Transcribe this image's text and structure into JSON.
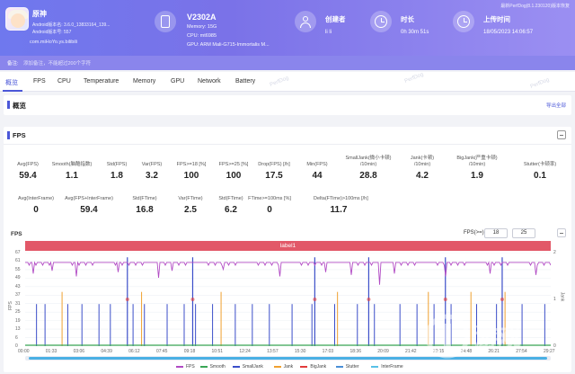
{
  "header": {
    "version_note": "最新PerfDog(8.1.230120)版本恢复",
    "app": {
      "name": "原神",
      "android_version": "Android版本名: 3.6.0_13833164_139...",
      "android_code": "Android版本号: 557",
      "package": "com.miHoYo.ys.bilibili"
    },
    "device": {
      "name": "V2302A",
      "memory": "Memory: 15G",
      "cpu": "CPU: mt6985",
      "gpu": "GPU: ARM Mali-G715-Immortalis M..."
    },
    "creator": {
      "label": "创建者",
      "value": "li li"
    },
    "duration": {
      "label": "时长",
      "value": "0h 30m 51s"
    },
    "upload": {
      "label": "上传时间",
      "value": "18/05/2023 14:06:57"
    }
  },
  "note_bar": {
    "label": "备注:",
    "text": "添加备注，不能超过200个字符"
  },
  "tabs": [
    "概览",
    "FPS",
    "CPU",
    "Temperature",
    "Memory",
    "GPU",
    "Network",
    "Battery"
  ],
  "watermark": "PerfDog",
  "overview": {
    "title": "概览",
    "export_label": "导出全部"
  },
  "fps_panel": {
    "title": "FPS",
    "stats_row1": [
      {
        "label": [
          "Avg(FPS)"
        ],
        "value": "59.4"
      },
      {
        "label": [
          "Smooth(脑酷指数)"
        ],
        "value": "1.1"
      },
      {
        "label": [
          "Std(FPS)"
        ],
        "value": "1.8"
      },
      {
        "label": [
          "Var(FPS)"
        ],
        "value": "3.2"
      },
      {
        "label": [
          "FPS>=18 [%]"
        ],
        "value": "100"
      },
      {
        "label": [
          "FPS>=25 [%]"
        ],
        "value": "100"
      },
      {
        "label": [
          "Drop(FPS) [/h]"
        ],
        "value": "17.5"
      },
      {
        "label": [
          "Min(FPS)"
        ],
        "value": "44"
      },
      {
        "label": [
          "SmallJank(微小卡顿)",
          "/10min)"
        ],
        "value": "28.8"
      },
      {
        "label": [
          "Jank(卡顿)",
          "/10min)"
        ],
        "value": "4.2"
      },
      {
        "label": [
          "BigJank(严重卡顿)",
          "/10min)"
        ],
        "value": "1.9"
      },
      {
        "label": [
          "Stutter(卡顿率)"
        ],
        "value": "0.1"
      }
    ],
    "stats_row2": [
      {
        "label": [
          "Avg(InterFrame)"
        ],
        "value": "0"
      },
      {
        "label": [
          "Avg(FPS+InterFrame)"
        ],
        "value": "59.4"
      },
      {
        "label": [
          "Std(FTime)"
        ],
        "value": "16.8"
      },
      {
        "label": [
          "Var(FTime)"
        ],
        "value": "2.5"
      },
      {
        "label": [
          "Std(FTime)"
        ],
        "value": "6.2"
      },
      {
        "label": [
          "FTime>=100ms [%]"
        ],
        "value": "0"
      },
      {
        "label": [
          "Delta(FTime)>100ms [/h]"
        ],
        "value": "11.7"
      }
    ],
    "chart_title": "FPS",
    "threshold_label": "FPS(>=)",
    "threshold_values": [
      "18",
      "25"
    ],
    "band_label": "label1"
  },
  "chart_data": {
    "type": "line",
    "x_ticks": [
      "00:00",
      "01:33",
      "03:06",
      "04:39",
      "06:12",
      "07:45",
      "09:18",
      "10:51",
      "12:24",
      "13:57",
      "15:30",
      "17:03",
      "18:36",
      "20:09",
      "21:42",
      "23:15",
      "24:48",
      "26:21",
      "27:54",
      "29:27"
    ],
    "y_left_ticks": [
      "67",
      "61",
      "55",
      "49",
      "43",
      "37",
      "31",
      "25",
      "19",
      "13",
      "6",
      "0"
    ],
    "y_left_label": "FPS",
    "y_right_ticks": [
      "2",
      "1",
      "0"
    ],
    "y_right_label": "Jank",
    "ylim": [
      0,
      67
    ],
    "duration_s": 1851,
    "fps_baseline": 60,
    "fps_dips": [
      [
        30,
        52
      ],
      [
        95,
        54
      ],
      [
        180,
        50
      ],
      [
        240,
        55
      ],
      [
        330,
        53
      ],
      [
        470,
        49
      ],
      [
        520,
        54
      ],
      [
        640,
        51
      ],
      [
        700,
        55
      ],
      [
        820,
        52
      ],
      [
        900,
        50
      ],
      [
        980,
        54
      ],
      [
        1060,
        53
      ],
      [
        1150,
        51
      ],
      [
        1250,
        44
      ],
      [
        1300,
        52
      ],
      [
        1400,
        54
      ],
      [
        1480,
        50
      ],
      [
        1560,
        53
      ],
      [
        1640,
        52
      ],
      [
        1720,
        54
      ],
      [
        1800,
        51
      ]
    ],
    "small_jank": [
      40,
      70,
      150,
      200,
      260,
      300,
      380,
      420,
      500,
      560,
      600,
      660,
      740,
      800,
      860,
      940,
      1010,
      1090,
      1170,
      1230,
      1320,
      1380,
      1440,
      1500,
      1590,
      1660,
      1750,
      1830
    ],
    "jank": [
      130,
      410,
      690,
      1100,
      1420,
      1570,
      1690
    ],
    "big_jank": [
      360,
      590,
      1020,
      1210,
      1480,
      1680
    ],
    "legend": [
      {
        "name": "FPS",
        "color": "#b14bc4"
      },
      {
        "name": "Smooth",
        "color": "#3aa655"
      },
      {
        "name": "SmallJank",
        "color": "#3b4ec9"
      },
      {
        "name": "Jank",
        "color": "#f0a030"
      },
      {
        "name": "BigJank",
        "color": "#e23b3b"
      },
      {
        "name": "Stutter",
        "color": "#4b8fd6"
      },
      {
        "name": "InterFrame",
        "color": "#58c0e6"
      }
    ]
  },
  "colors": {
    "accent": "#4b57d8",
    "header": "#7a72e8",
    "band": "#e25868"
  }
}
